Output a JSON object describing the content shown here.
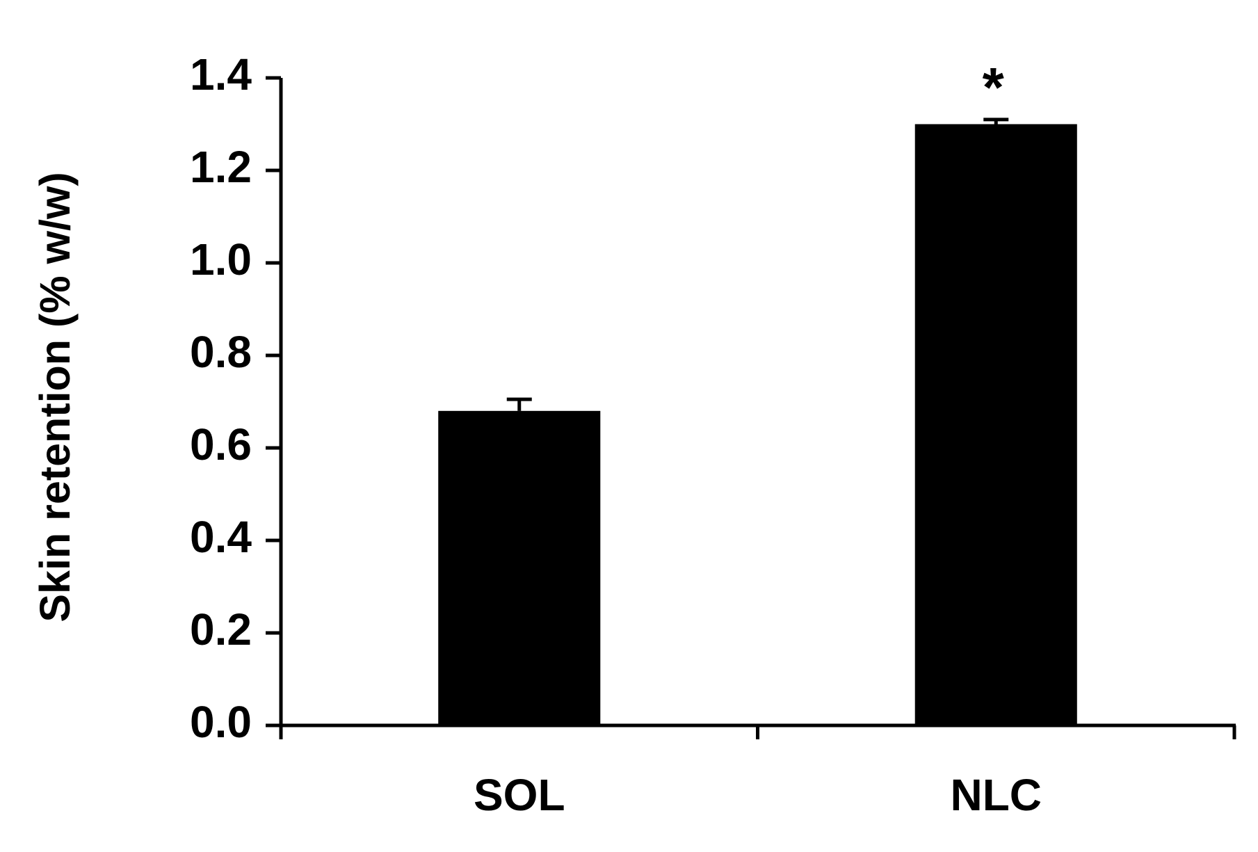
{
  "chart_data": {
    "type": "bar",
    "y_label": "Skin retention (% w/w)",
    "categories": [
      "SOL",
      "NLC"
    ],
    "values": [
      0.68,
      1.3
    ],
    "errors": [
      0.025,
      0.01
    ],
    "color": "#000000",
    "annotations": [
      {
        "category": 1,
        "text": "*"
      }
    ],
    "ylim": [
      0,
      1.4
    ],
    "yticks": [
      {
        "value": 0,
        "label": "0.0"
      },
      0.2,
      0.4,
      0.6,
      0.8,
      {
        "value": 1,
        "label": "1.0"
      },
      1.2,
      1.4
    ],
    "grid": false
  }
}
